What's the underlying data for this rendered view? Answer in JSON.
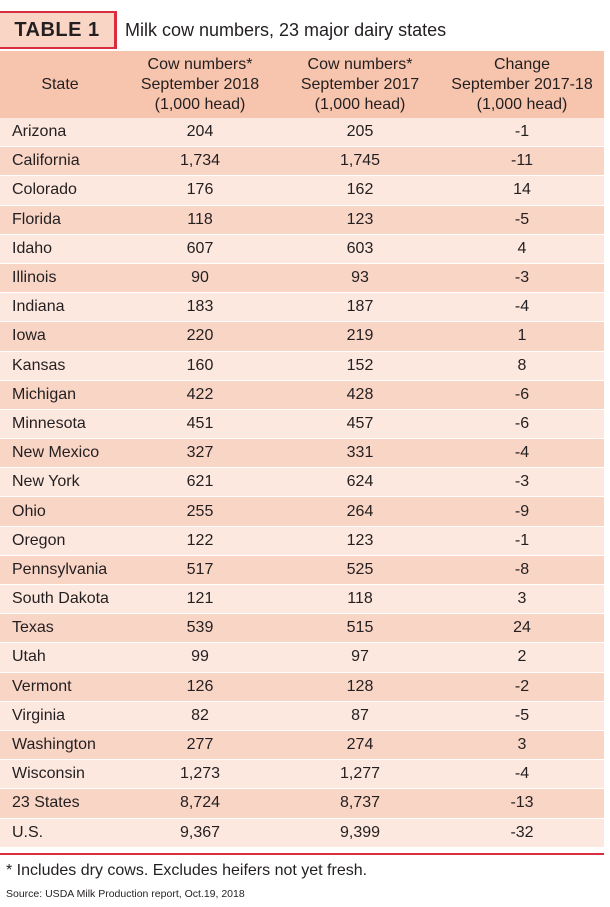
{
  "title_bar": {
    "label": "TABLE 1",
    "title": "Milk cow numbers, 23 major dairy states"
  },
  "headers": [
    [
      "State"
    ],
    [
      "Cow numbers*",
      "September 2018",
      "(1,000 head)"
    ],
    [
      "Cow numbers*",
      "September 2017",
      "(1,000 head)"
    ],
    [
      "Change",
      "September 2017-18",
      "(1,000 head)"
    ]
  ],
  "rows": [
    [
      "Arizona",
      "204",
      "205",
      "-1"
    ],
    [
      "California",
      "1,734",
      "1,745",
      "-11"
    ],
    [
      "Colorado",
      "176",
      "162",
      "14"
    ],
    [
      "Florida",
      "118",
      "123",
      "-5"
    ],
    [
      "Idaho",
      "607",
      "603",
      "4"
    ],
    [
      "Illinois",
      "90",
      "93",
      "-3"
    ],
    [
      "Indiana",
      "183",
      "187",
      "-4"
    ],
    [
      "Iowa",
      "220",
      "219",
      "1"
    ],
    [
      "Kansas",
      "160",
      "152",
      "8"
    ],
    [
      "Michigan",
      "422",
      "428",
      "-6"
    ],
    [
      "Minnesota",
      "451",
      "457",
      "-6"
    ],
    [
      "New Mexico",
      "327",
      "331",
      "-4"
    ],
    [
      "New York",
      "621",
      "624",
      "-3"
    ],
    [
      "Ohio",
      "255",
      "264",
      "-9"
    ],
    [
      "Oregon",
      "122",
      "123",
      "-1"
    ],
    [
      "Pennsylvania",
      "517",
      "525",
      "-8"
    ],
    [
      "South Dakota",
      "121",
      "118",
      "3"
    ],
    [
      "Texas",
      "539",
      "515",
      "24"
    ],
    [
      "Utah",
      "99",
      "97",
      "2"
    ],
    [
      "Vermont",
      "126",
      "128",
      "-2"
    ],
    [
      "Virginia",
      "82",
      "87",
      "-5"
    ],
    [
      "Washington",
      "277",
      "274",
      "3"
    ],
    [
      "Wisconsin",
      "1,273",
      "1,277",
      "-4"
    ],
    [
      "23 States",
      "8,724",
      "8,737",
      "-13"
    ],
    [
      "U.S.",
      "9,367",
      "9,399",
      "-32"
    ]
  ],
  "footnote": "* Includes dry cows. Excludes heifers not yet fresh.",
  "source": "Source: USDA Milk Production report, Oct.19, 2018",
  "colors": {
    "accent_red": "#d82e3f",
    "header_bg": "#f7c4ad",
    "row_light": "#fde8df",
    "row_dark": "#f9d5c6"
  }
}
